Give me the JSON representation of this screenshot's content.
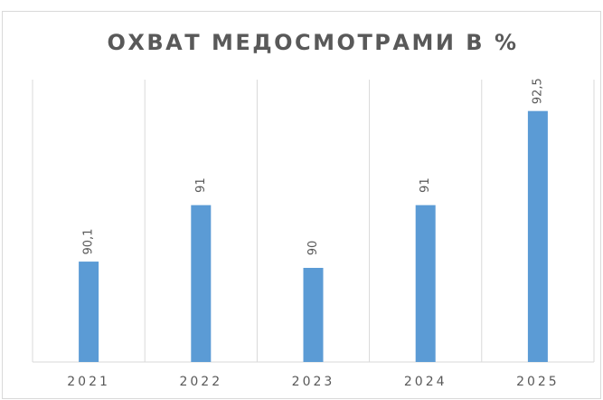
{
  "chart_data": {
    "type": "bar",
    "title": "ОХВАТ МЕДОСМОТРАМИ В %",
    "categories": [
      "2021",
      "2022",
      "2023",
      "2024",
      "2025"
    ],
    "values": [
      90.1,
      91,
      90,
      91,
      92.5
    ],
    "value_labels": [
      "90,1",
      "91",
      "90",
      "91",
      "92,5"
    ],
    "color": "#5b9bd5",
    "ylim": [
      88.5,
      93
    ]
  }
}
